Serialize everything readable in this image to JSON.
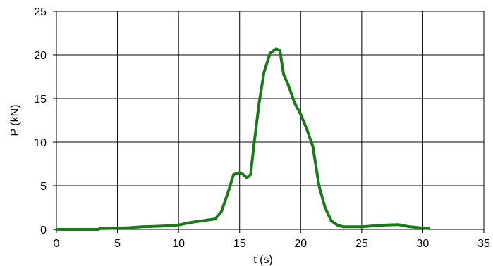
{
  "chart_data": {
    "type": "line",
    "title": "",
    "xlabel": "t (s)",
    "ylabel": "P (kN)",
    "xlim": [
      0,
      35
    ],
    "ylim": [
      0,
      25
    ],
    "x_ticks": [
      "0",
      "5",
      "10",
      "15",
      "20",
      "25",
      "30",
      "35"
    ],
    "y_ticks": [
      "0",
      "5",
      "10",
      "15",
      "20",
      "25"
    ],
    "grid": true,
    "legend": "none",
    "series": [
      {
        "color": "#1a7a1a",
        "x": [
          0,
          3.4,
          3.6,
          4.0,
          5.0,
          6.0,
          7.0,
          8.0,
          9.0,
          10.0,
          11.0,
          12.0,
          12.5,
          13.0,
          13.5,
          14.0,
          14.5,
          15.0,
          15.3,
          15.6,
          15.9,
          16.2,
          16.6,
          17.0,
          17.5,
          18.0,
          18.3,
          18.6,
          19.0,
          19.5,
          20.0,
          20.5,
          21.0,
          21.5,
          22.0,
          22.5,
          23.0,
          23.5,
          24.0,
          25.0,
          26.0,
          27.0,
          28.0,
          28.5,
          29.0,
          30.0,
          30.5
        ],
        "y": [
          0,
          0,
          0.1,
          0.1,
          0.15,
          0.2,
          0.3,
          0.35,
          0.4,
          0.5,
          0.8,
          1.0,
          1.1,
          1.2,
          2.0,
          4.0,
          6.3,
          6.5,
          6.3,
          5.9,
          6.3,
          10.0,
          14.5,
          18.0,
          20.2,
          20.7,
          20.5,
          17.8,
          16.5,
          14.5,
          13.2,
          11.5,
          9.5,
          5.0,
          2.5,
          1.0,
          0.5,
          0.3,
          0.3,
          0.3,
          0.4,
          0.5,
          0.55,
          0.4,
          0.3,
          0.15,
          0.1
        ]
      }
    ]
  }
}
